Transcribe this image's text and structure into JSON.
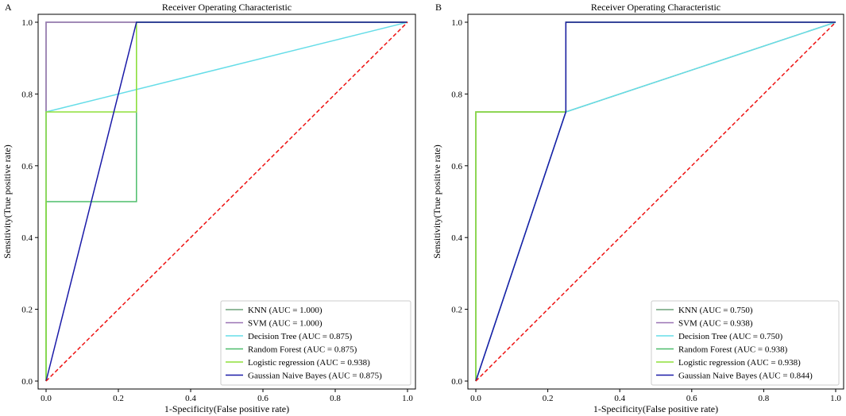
{
  "chart_data": [
    {
      "panel_label": "A",
      "type": "line",
      "title": "Receiver Operating Characteristic",
      "xlabel": "1-Specificity(False positive rate)",
      "ylabel": "Sensitivity(True positive rate)",
      "xlim": [
        0,
        1
      ],
      "ylim": [
        0,
        1
      ],
      "xticks": [
        0.0,
        0.2,
        0.4,
        0.6,
        0.8,
        1.0
      ],
      "yticks": [
        0.0,
        0.2,
        0.4,
        0.6,
        0.8,
        1.0
      ],
      "tick_labels": [
        "0.0",
        "0.2",
        "0.4",
        "0.6",
        "0.8",
        "1.0"
      ],
      "grid": false,
      "legend_position": "bottom-right",
      "series": [
        {
          "name": "KNN (AUC = 1.000)",
          "color": "#6fa27a",
          "x": [
            0,
            0,
            1
          ],
          "y": [
            0,
            1,
            1
          ]
        },
        {
          "name": "SVM (AUC = 1.000)",
          "color": "#9a73b5",
          "x": [
            0,
            0,
            1
          ],
          "y": [
            0,
            1,
            1
          ]
        },
        {
          "name": "Decision Tree (AUC = 0.875)",
          "color": "#66dde8",
          "x": [
            0,
            0,
            1
          ],
          "y": [
            0,
            0.75,
            1
          ]
        },
        {
          "name": "Random Forest (AUC = 0.875)",
          "color": "#4dbd6a",
          "x": [
            0,
            0,
            0.25,
            0.25,
            1
          ],
          "y": [
            0,
            0.5,
            0.5,
            1,
            1
          ]
        },
        {
          "name": "Logistic regression (AUC = 0.938)",
          "color": "#8fe03a",
          "x": [
            0,
            0,
            0.25,
            0.25,
            1
          ],
          "y": [
            0,
            0.75,
            0.75,
            1,
            1
          ]
        },
        {
          "name": "Gaussian Naive Bayes (AUC = 0.875)",
          "color": "#1a1aa8",
          "x": [
            0,
            0.25,
            1
          ],
          "y": [
            0,
            1,
            1
          ]
        }
      ],
      "reference_line": {
        "x": [
          0,
          1
        ],
        "y": [
          0,
          1
        ],
        "color": "#ee1111"
      }
    },
    {
      "panel_label": "B",
      "type": "line",
      "title": "Receiver Operating Characteristic",
      "xlabel": "1-Specificity(False positive rate)",
      "ylabel": "Sensitivity(True positive rate)",
      "xlim": [
        0,
        1
      ],
      "ylim": [
        0,
        1
      ],
      "xticks": [
        0.0,
        0.2,
        0.4,
        0.6,
        0.8,
        1.0
      ],
      "yticks": [
        0.0,
        0.2,
        0.4,
        0.6,
        0.8,
        1.0
      ],
      "tick_labels": [
        "0.0",
        "0.2",
        "0.4",
        "0.6",
        "0.8",
        "1.0"
      ],
      "grid": false,
      "legend_position": "bottom-right",
      "series": [
        {
          "name": "KNN (AUC = 0.750)",
          "color": "#6fa27a",
          "x": [
            0,
            0.25,
            1
          ],
          "y": [
            0,
            0.75,
            1
          ]
        },
        {
          "name": "SVM (AUC = 0.938)",
          "color": "#9a73b5",
          "x": [
            0,
            0,
            0.25,
            0.25,
            1
          ],
          "y": [
            0,
            0.75,
            0.75,
            1,
            1
          ]
        },
        {
          "name": "Decision Tree (AUC = 0.750)",
          "color": "#66dde8",
          "x": [
            0,
            0.25,
            1
          ],
          "y": [
            0,
            0.75,
            1
          ]
        },
        {
          "name": "Random Forest (AUC = 0.938)",
          "color": "#4dbd6a",
          "x": [
            0,
            0,
            0.25,
            0.25,
            1
          ],
          "y": [
            0,
            0.75,
            0.75,
            1,
            1
          ]
        },
        {
          "name": "Logistic regression (AUC = 0.938)",
          "color": "#8fe03a",
          "x": [
            0,
            0,
            0.25,
            0.25,
            1
          ],
          "y": [
            0,
            0.75,
            0.75,
            1,
            1
          ]
        },
        {
          "name": "Gaussian Naive Bayes (AUC = 0.844)",
          "color": "#1a1aa8",
          "x": [
            0,
            0.25,
            0.25,
            1
          ],
          "y": [
            0,
            0.75,
            1,
            1
          ]
        }
      ],
      "reference_line": {
        "x": [
          0,
          1
        ],
        "y": [
          0,
          1
        ],
        "color": "#ee1111"
      }
    }
  ]
}
